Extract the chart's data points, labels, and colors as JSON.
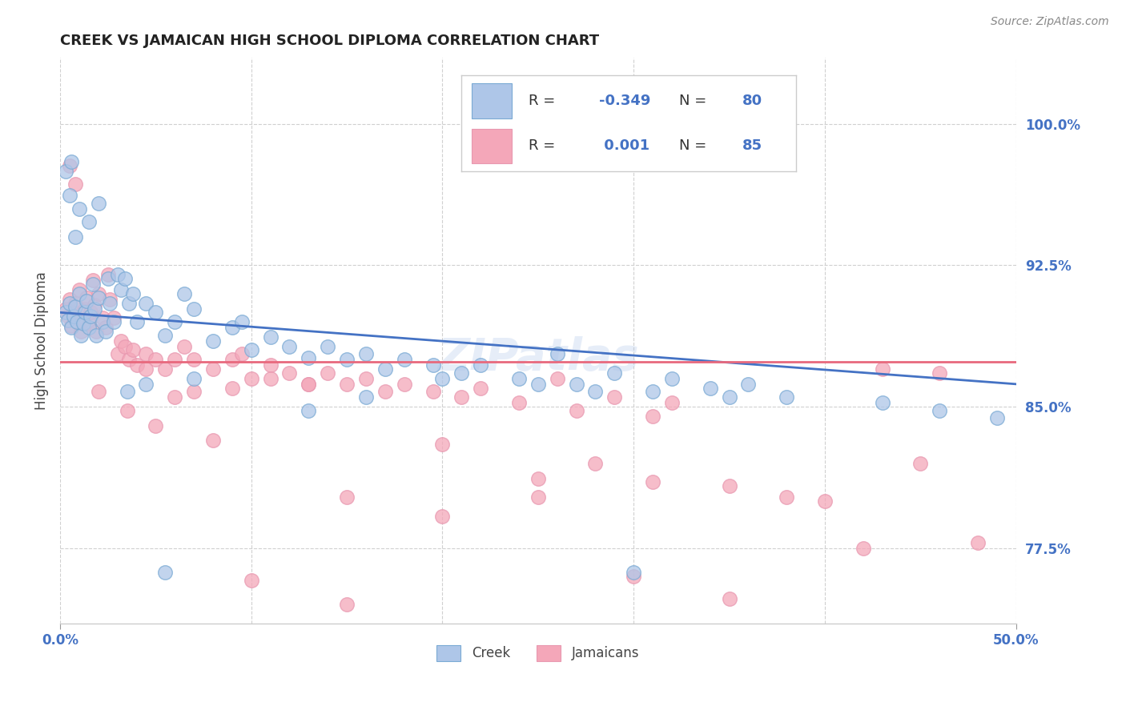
{
  "title": "CREEK VS JAMAICAN HIGH SCHOOL DIPLOMA CORRELATION CHART",
  "source": "Source: ZipAtlas.com",
  "ylabel": "High School Diploma",
  "ytick_values": [
    0.775,
    0.85,
    0.925,
    1.0
  ],
  "xlim": [
    0.0,
    0.5
  ],
  "ylim": [
    0.735,
    1.035
  ],
  "creek_color": "#aec6e8",
  "jamaican_color": "#f4a7b9",
  "blue_line_color": "#4472c4",
  "pink_line_color": "#e8697d",
  "blue_trendline_x": [
    0.0,
    0.5
  ],
  "blue_trendline_y": [
    0.9,
    0.862
  ],
  "pink_trendline_x": [
    0.0,
    0.5
  ],
  "pink_trendline_y": [
    0.874,
    0.874
  ],
  "watermark": "ZIPatlas",
  "axis_color": "#4472c4",
  "grid_color": "#d0d0d0",
  "background_color": "#ffffff",
  "creek_scatter": [
    [
      0.003,
      0.9
    ],
    [
      0.004,
      0.896
    ],
    [
      0.005,
      0.905
    ],
    [
      0.006,
      0.892
    ],
    [
      0.007,
      0.898
    ],
    [
      0.008,
      0.903
    ],
    [
      0.009,
      0.895
    ],
    [
      0.01,
      0.91
    ],
    [
      0.011,
      0.888
    ],
    [
      0.012,
      0.894
    ],
    [
      0.013,
      0.9
    ],
    [
      0.014,
      0.906
    ],
    [
      0.015,
      0.892
    ],
    [
      0.016,
      0.898
    ],
    [
      0.017,
      0.915
    ],
    [
      0.018,
      0.902
    ],
    [
      0.019,
      0.888
    ],
    [
      0.02,
      0.908
    ],
    [
      0.022,
      0.895
    ],
    [
      0.024,
      0.89
    ],
    [
      0.025,
      0.918
    ],
    [
      0.026,
      0.905
    ],
    [
      0.028,
      0.895
    ],
    [
      0.03,
      0.92
    ],
    [
      0.032,
      0.912
    ],
    [
      0.034,
      0.918
    ],
    [
      0.036,
      0.905
    ],
    [
      0.038,
      0.91
    ],
    [
      0.04,
      0.895
    ],
    [
      0.045,
      0.905
    ],
    [
      0.05,
      0.9
    ],
    [
      0.055,
      0.888
    ],
    [
      0.06,
      0.895
    ],
    [
      0.065,
      0.91
    ],
    [
      0.07,
      0.902
    ],
    [
      0.08,
      0.885
    ],
    [
      0.09,
      0.892
    ],
    [
      0.095,
      0.895
    ],
    [
      0.1,
      0.88
    ],
    [
      0.11,
      0.887
    ],
    [
      0.12,
      0.882
    ],
    [
      0.13,
      0.876
    ],
    [
      0.14,
      0.882
    ],
    [
      0.15,
      0.875
    ],
    [
      0.16,
      0.878
    ],
    [
      0.17,
      0.87
    ],
    [
      0.18,
      0.875
    ],
    [
      0.195,
      0.872
    ],
    [
      0.21,
      0.868
    ],
    [
      0.22,
      0.872
    ],
    [
      0.24,
      0.865
    ],
    [
      0.26,
      0.878
    ],
    [
      0.27,
      0.862
    ],
    [
      0.29,
      0.868
    ],
    [
      0.31,
      0.858
    ],
    [
      0.32,
      0.865
    ],
    [
      0.34,
      0.86
    ],
    [
      0.36,
      0.862
    ],
    [
      0.38,
      0.855
    ],
    [
      0.005,
      0.962
    ],
    [
      0.01,
      0.955
    ],
    [
      0.015,
      0.948
    ],
    [
      0.008,
      0.94
    ],
    [
      0.02,
      0.958
    ],
    [
      0.003,
      0.975
    ],
    [
      0.006,
      0.98
    ],
    [
      0.43,
      0.852
    ],
    [
      0.46,
      0.848
    ],
    [
      0.49,
      0.844
    ],
    [
      0.035,
      0.858
    ],
    [
      0.055,
      0.762
    ],
    [
      0.3,
      0.762
    ],
    [
      0.35,
      0.855
    ],
    [
      0.25,
      0.862
    ],
    [
      0.16,
      0.855
    ],
    [
      0.13,
      0.848
    ],
    [
      0.07,
      0.865
    ],
    [
      0.045,
      0.862
    ],
    [
      0.2,
      0.865
    ],
    [
      0.28,
      0.858
    ]
  ],
  "jamaican_scatter": [
    [
      0.003,
      0.902
    ],
    [
      0.004,
      0.898
    ],
    [
      0.005,
      0.907
    ],
    [
      0.006,
      0.893
    ],
    [
      0.007,
      0.9
    ],
    [
      0.008,
      0.905
    ],
    [
      0.009,
      0.897
    ],
    [
      0.01,
      0.912
    ],
    [
      0.011,
      0.89
    ],
    [
      0.012,
      0.896
    ],
    [
      0.013,
      0.902
    ],
    [
      0.014,
      0.908
    ],
    [
      0.015,
      0.894
    ],
    [
      0.016,
      0.9
    ],
    [
      0.017,
      0.917
    ],
    [
      0.018,
      0.904
    ],
    [
      0.019,
      0.89
    ],
    [
      0.02,
      0.91
    ],
    [
      0.022,
      0.897
    ],
    [
      0.024,
      0.892
    ],
    [
      0.025,
      0.92
    ],
    [
      0.026,
      0.907
    ],
    [
      0.028,
      0.897
    ],
    [
      0.03,
      0.878
    ],
    [
      0.032,
      0.885
    ],
    [
      0.034,
      0.882
    ],
    [
      0.036,
      0.875
    ],
    [
      0.038,
      0.88
    ],
    [
      0.04,
      0.872
    ],
    [
      0.045,
      0.878
    ],
    [
      0.05,
      0.875
    ],
    [
      0.055,
      0.87
    ],
    [
      0.06,
      0.875
    ],
    [
      0.065,
      0.882
    ],
    [
      0.07,
      0.875
    ],
    [
      0.08,
      0.87
    ],
    [
      0.09,
      0.875
    ],
    [
      0.095,
      0.878
    ],
    [
      0.1,
      0.865
    ],
    [
      0.11,
      0.872
    ],
    [
      0.12,
      0.868
    ],
    [
      0.13,
      0.862
    ],
    [
      0.14,
      0.868
    ],
    [
      0.15,
      0.862
    ],
    [
      0.16,
      0.865
    ],
    [
      0.17,
      0.858
    ],
    [
      0.18,
      0.862
    ],
    [
      0.195,
      0.858
    ],
    [
      0.21,
      0.855
    ],
    [
      0.22,
      0.86
    ],
    [
      0.24,
      0.852
    ],
    [
      0.26,
      0.865
    ],
    [
      0.27,
      0.848
    ],
    [
      0.29,
      0.855
    ],
    [
      0.31,
      0.845
    ],
    [
      0.32,
      0.852
    ],
    [
      0.005,
      0.978
    ],
    [
      0.008,
      0.968
    ],
    [
      0.43,
      0.87
    ],
    [
      0.46,
      0.868
    ],
    [
      0.02,
      0.858
    ],
    [
      0.035,
      0.848
    ],
    [
      0.05,
      0.84
    ],
    [
      0.08,
      0.832
    ],
    [
      0.1,
      0.758
    ],
    [
      0.15,
      0.745
    ],
    [
      0.2,
      0.83
    ],
    [
      0.25,
      0.802
    ],
    [
      0.28,
      0.82
    ],
    [
      0.31,
      0.81
    ],
    [
      0.35,
      0.808
    ],
    [
      0.38,
      0.802
    ],
    [
      0.42,
      0.775
    ],
    [
      0.45,
      0.82
    ],
    [
      0.48,
      0.778
    ],
    [
      0.3,
      0.76
    ],
    [
      0.35,
      0.748
    ],
    [
      0.4,
      0.8
    ],
    [
      0.15,
      0.802
    ],
    [
      0.2,
      0.792
    ],
    [
      0.25,
      0.812
    ],
    [
      0.13,
      0.862
    ],
    [
      0.06,
      0.855
    ],
    [
      0.09,
      0.86
    ],
    [
      0.045,
      0.87
    ],
    [
      0.07,
      0.858
    ],
    [
      0.11,
      0.865
    ]
  ]
}
